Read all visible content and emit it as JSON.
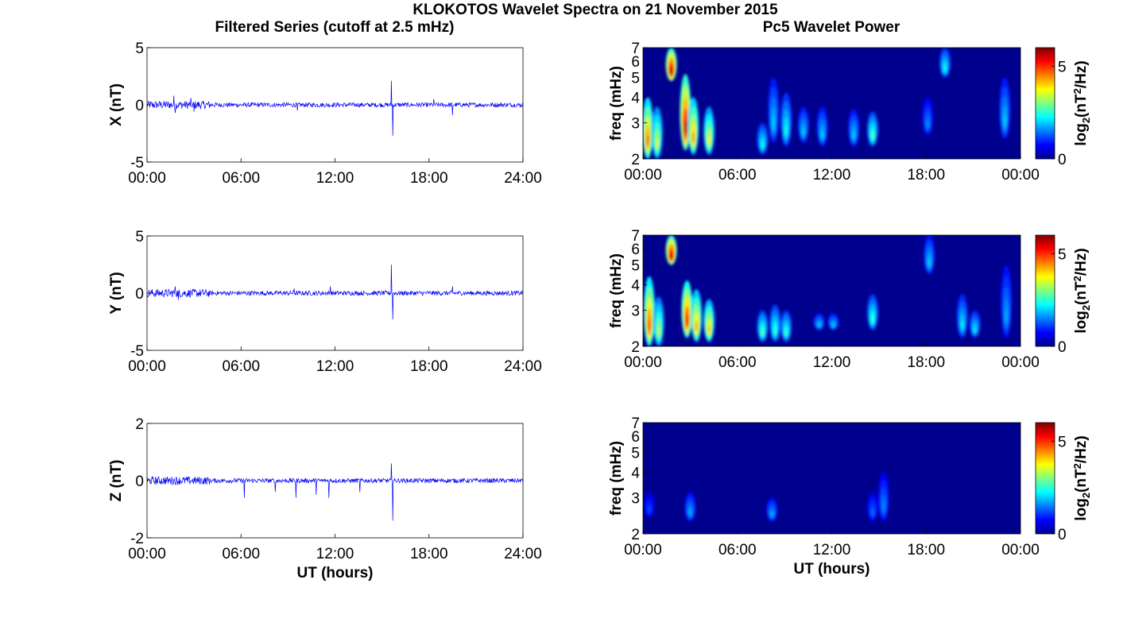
{
  "figure": {
    "title": "KLOKOTOS Wavelet Spectra on 21 November 2015",
    "left_title": "Filtered Series (cutoff at 2.5 mHz)",
    "right_title": "Pc5 Wavelet Power"
  },
  "colors": {
    "trace": "#0000ff",
    "axis": "#000000",
    "spectrum_background": "#00008f"
  },
  "chart_data": [
    {
      "type": "line",
      "component": "X",
      "ylabel": "X (nT)",
      "xlabel": "",
      "x_ticks": [
        "00:00",
        "06:00",
        "12:00",
        "18:00",
        "24:00"
      ],
      "y_ticks": [
        "5",
        "0",
        "-5"
      ],
      "xlim": [
        0,
        24
      ],
      "ylim": [
        -5,
        5
      ],
      "baseline_amplitude": 0.2,
      "spikes": [
        {
          "x": 1.7,
          "y": 0.8
        },
        {
          "x": 1.8,
          "y": -0.7
        },
        {
          "x": 2.8,
          "y": 0.6
        },
        {
          "x": 3.0,
          "y": -0.6
        },
        {
          "x": 9.6,
          "y": -0.5
        },
        {
          "x": 15.6,
          "y": 2.1
        },
        {
          "x": 15.7,
          "y": -2.7
        },
        {
          "x": 18.3,
          "y": 0.5
        },
        {
          "x": 19.5,
          "y": -0.9
        }
      ]
    },
    {
      "type": "heatmap",
      "component": "X",
      "ylabel": "freq (mHz)",
      "xlabel": "",
      "x_ticks": [
        "00:00",
        "06:00",
        "12:00",
        "18:00",
        "00:00"
      ],
      "y_ticks": [
        "2",
        "3",
        "4",
        "5",
        "6",
        "7"
      ],
      "xlim": [
        0,
        24
      ],
      "ylim": [
        2,
        7
      ],
      "y_scale": "log",
      "colorbar_label": "log2(nT2/Hz)",
      "colorbar_ticks": [
        "0",
        "5"
      ],
      "colorbar_range": [
        0,
        6
      ],
      "blobs": [
        {
          "t": 0.3,
          "f_low": 2.0,
          "f_high": 4.0,
          "power": 4.8
        },
        {
          "t": 0.9,
          "f_low": 2.0,
          "f_high": 3.6,
          "power": 3.6
        },
        {
          "t": 1.8,
          "f_low": 4.8,
          "f_high": 7.0,
          "power": 6.0
        },
        {
          "t": 2.7,
          "f_low": 2.2,
          "f_high": 5.2,
          "power": 5.8
        },
        {
          "t": 3.2,
          "f_low": 2.1,
          "f_high": 4.0,
          "power": 4.5
        },
        {
          "t": 4.2,
          "f_low": 2.1,
          "f_high": 3.6,
          "power": 3.8
        },
        {
          "t": 7.6,
          "f_low": 2.1,
          "f_high": 3.0,
          "power": 2.4
        },
        {
          "t": 8.3,
          "f_low": 2.4,
          "f_high": 5.0,
          "power": 2.0
        },
        {
          "t": 9.1,
          "f_low": 2.3,
          "f_high": 4.2,
          "power": 2.4
        },
        {
          "t": 10.2,
          "f_low": 2.4,
          "f_high": 3.6,
          "power": 2.0
        },
        {
          "t": 11.4,
          "f_low": 2.3,
          "f_high": 3.6,
          "power": 2.0
        },
        {
          "t": 13.4,
          "f_low": 2.3,
          "f_high": 3.5,
          "power": 2.0
        },
        {
          "t": 14.6,
          "f_low": 2.3,
          "f_high": 3.4,
          "power": 2.8
        },
        {
          "t": 18.1,
          "f_low": 2.6,
          "f_high": 4.0,
          "power": 1.6
        },
        {
          "t": 19.2,
          "f_low": 5.0,
          "f_high": 7.0,
          "power": 2.4
        },
        {
          "t": 23.0,
          "f_low": 2.5,
          "f_high": 5.0,
          "power": 2.0
        }
      ]
    },
    {
      "type": "line",
      "component": "Y",
      "ylabel": "Y (nT)",
      "xlabel": "",
      "x_ticks": [
        "00:00",
        "06:00",
        "12:00",
        "18:00",
        "24:00"
      ],
      "y_ticks": [
        "5",
        "0",
        "-5"
      ],
      "xlim": [
        0,
        24
      ],
      "ylim": [
        -5,
        5
      ],
      "baseline_amplitude": 0.2,
      "spikes": [
        {
          "x": 1.8,
          "y": 0.6
        },
        {
          "x": 2.0,
          "y": -0.6
        },
        {
          "x": 9.4,
          "y": 0.4
        },
        {
          "x": 11.7,
          "y": 0.6
        },
        {
          "x": 15.6,
          "y": 2.5
        },
        {
          "x": 15.7,
          "y": -2.3
        },
        {
          "x": 19.5,
          "y": 0.6
        }
      ]
    },
    {
      "type": "heatmap",
      "component": "Y",
      "ylabel": "freq (mHz)",
      "xlabel": "",
      "x_ticks": [
        "00:00",
        "06:00",
        "12:00",
        "18:00",
        "00:00"
      ],
      "y_ticks": [
        "2",
        "3",
        "4",
        "5",
        "6",
        "7"
      ],
      "xlim": [
        0,
        24
      ],
      "ylim": [
        2,
        7
      ],
      "y_scale": "log",
      "colorbar_label": "log2(nT2/Hz)",
      "colorbar_ticks": [
        "0",
        "5"
      ],
      "colorbar_range": [
        0,
        6
      ],
      "blobs": [
        {
          "t": 0.4,
          "f_low": 2.0,
          "f_high": 4.4,
          "power": 5.0
        },
        {
          "t": 1.0,
          "f_low": 2.0,
          "f_high": 3.5,
          "power": 3.4
        },
        {
          "t": 1.8,
          "f_low": 5.0,
          "f_high": 7.0,
          "power": 6.0
        },
        {
          "t": 2.8,
          "f_low": 2.2,
          "f_high": 4.2,
          "power": 5.4
        },
        {
          "t": 3.4,
          "f_low": 2.1,
          "f_high": 3.8,
          "power": 4.4
        },
        {
          "t": 4.2,
          "f_low": 2.1,
          "f_high": 3.4,
          "power": 4.2
        },
        {
          "t": 7.6,
          "f_low": 2.1,
          "f_high": 3.0,
          "power": 2.8
        },
        {
          "t": 8.4,
          "f_low": 2.1,
          "f_high": 3.2,
          "power": 2.6
        },
        {
          "t": 9.1,
          "f_low": 2.1,
          "f_high": 3.0,
          "power": 2.6
        },
        {
          "t": 11.2,
          "f_low": 2.4,
          "f_high": 2.9,
          "power": 2.0
        },
        {
          "t": 12.1,
          "f_low": 2.4,
          "f_high": 2.9,
          "power": 2.0
        },
        {
          "t": 14.6,
          "f_low": 2.4,
          "f_high": 3.6,
          "power": 2.6
        },
        {
          "t": 18.2,
          "f_low": 4.5,
          "f_high": 7.0,
          "power": 2.0
        },
        {
          "t": 20.3,
          "f_low": 2.2,
          "f_high": 3.6,
          "power": 2.2
        },
        {
          "t": 21.1,
          "f_low": 2.2,
          "f_high": 3.0,
          "power": 2.2
        },
        {
          "t": 23.1,
          "f_low": 2.2,
          "f_high": 5.0,
          "power": 1.8
        }
      ]
    },
    {
      "type": "line",
      "component": "Z",
      "ylabel": "Z (nT)",
      "xlabel": "UT (hours)",
      "x_ticks": [
        "00:00",
        "06:00",
        "12:00",
        "18:00",
        "24:00"
      ],
      "y_ticks": [
        "2",
        "0",
        "-2"
      ],
      "xlim": [
        0,
        24
      ],
      "ylim": [
        -2,
        2
      ],
      "baseline_amplitude": 0.08,
      "spikes": [
        {
          "x": 6.2,
          "y": -0.6
        },
        {
          "x": 8.2,
          "y": -0.4
        },
        {
          "x": 9.5,
          "y": -0.6
        },
        {
          "x": 10.8,
          "y": -0.5
        },
        {
          "x": 11.6,
          "y": -0.6
        },
        {
          "x": 13.6,
          "y": -0.4
        },
        {
          "x": 15.6,
          "y": 0.6
        },
        {
          "x": 15.7,
          "y": -1.4
        }
      ]
    },
    {
      "type": "heatmap",
      "component": "Z",
      "ylabel": "freq (mHz)",
      "xlabel": "UT (hours)",
      "x_ticks": [
        "00:00",
        "06:00",
        "12:00",
        "18:00",
        "00:00"
      ],
      "y_ticks": [
        "2",
        "3",
        "4",
        "5",
        "6",
        "7"
      ],
      "xlim": [
        0,
        24
      ],
      "ylim": [
        2,
        7
      ],
      "y_scale": "log",
      "colorbar_label": "log2(nT2/Hz)",
      "colorbar_ticks": [
        "0",
        "5"
      ],
      "colorbar_range": [
        0,
        6
      ],
      "blobs": [
        {
          "t": 0.4,
          "f_low": 2.4,
          "f_high": 3.2,
          "power": 1.2
        },
        {
          "t": 3.0,
          "f_low": 2.3,
          "f_high": 3.2,
          "power": 1.8
        },
        {
          "t": 8.2,
          "f_low": 2.3,
          "f_high": 3.0,
          "power": 1.8
        },
        {
          "t": 14.6,
          "f_low": 2.3,
          "f_high": 3.2,
          "power": 1.4
        },
        {
          "t": 15.3,
          "f_low": 2.3,
          "f_high": 4.0,
          "power": 1.6
        }
      ]
    }
  ]
}
